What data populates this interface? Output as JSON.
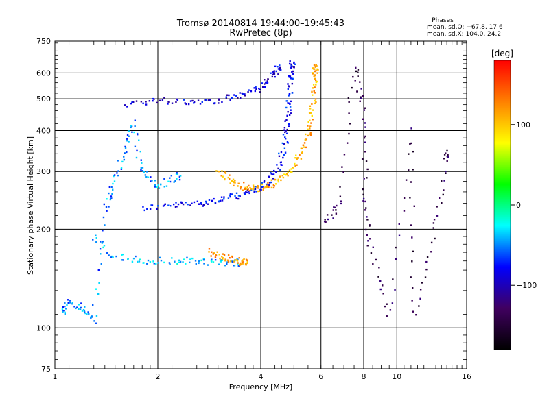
{
  "chart_data": {
    "type": "scatter",
    "title": "Tromsø 20140814 19:44:00–19:45:43",
    "subtitle": "RwPretec (8p)",
    "xlabel": "Frequency [MHz]",
    "ylabel": "Stationary phase Virtual Height [km]",
    "x_scale": "log",
    "y_scale": "log",
    "xlim": [
      1,
      16
    ],
    "ylim": [
      75,
      750
    ],
    "x_ticks": [
      1,
      2,
      4,
      6,
      8,
      10,
      16
    ],
    "y_ticks": [
      75,
      100,
      200,
      300,
      400,
      500,
      600,
      750
    ],
    "grid": true,
    "phase_box": {
      "heading": "Phases",
      "line1": "mean, sd,O: −67.8, 17.6",
      "line2": "mean, sd,X: 104.0, 24.2"
    },
    "colorbar": {
      "label": "[deg]",
      "range": [
        -180,
        180
      ],
      "ticks": [
        100,
        0,
        -100
      ],
      "tick_labels": [
        "100",
        "0",
        "−100"
      ],
      "colors": [
        "#ff0000",
        "#ff8000",
        "#ffff00",
        "#00ff00",
        "#00ffff",
        "#0000ff",
        "#400060",
        "#000000"
      ]
    },
    "series": [
      {
        "description": "F2 O-mode trace",
        "phase_deg": -80,
        "points": [
          [
            1.8,
            232
          ],
          [
            2.2,
            236
          ],
          [
            2.6,
            240
          ],
          [
            3.0,
            245
          ],
          [
            3.4,
            252
          ],
          [
            3.8,
            262
          ],
          [
            4.2,
            278
          ],
          [
            4.5,
            310
          ],
          [
            4.7,
            360
          ],
          [
            4.8,
            420
          ],
          [
            4.85,
            500
          ],
          [
            4.9,
            580
          ],
          [
            4.95,
            640
          ]
        ]
      },
      {
        "description": "F2 X-mode trace",
        "phase_deg": 110,
        "points": [
          [
            3.0,
            300
          ],
          [
            3.3,
            280
          ],
          [
            3.6,
            268
          ],
          [
            3.9,
            265
          ],
          [
            4.3,
            272
          ],
          [
            4.7,
            290
          ],
          [
            5.1,
            320
          ],
          [
            5.4,
            360
          ],
          [
            5.6,
            420
          ],
          [
            5.7,
            500
          ],
          [
            5.75,
            580
          ],
          [
            5.8,
            630
          ]
        ]
      },
      {
        "description": "Second hop O-mode",
        "phase_deg": -90,
        "points": [
          [
            1.6,
            480
          ],
          [
            2.0,
            495
          ],
          [
            2.5,
            490
          ],
          [
            3.0,
            495
          ],
          [
            3.5,
            510
          ],
          [
            4.0,
            540
          ],
          [
            4.3,
            580
          ],
          [
            4.5,
            620
          ]
        ]
      },
      {
        "description": "E/F1 region echoes",
        "phase_deg": -40,
        "points": [
          [
            1.3,
            190
          ],
          [
            1.5,
            165
          ],
          [
            1.8,
            160
          ],
          [
            2.2,
            160
          ],
          [
            2.6,
            160
          ],
          [
            3.0,
            158
          ],
          [
            3.4,
            158
          ]
        ]
      },
      {
        "description": "E/F1 X-mode echoes",
        "phase_deg": 120,
        "points": [
          [
            2.8,
            170
          ],
          [
            3.1,
            165
          ],
          [
            3.4,
            160
          ],
          [
            3.6,
            158
          ]
        ]
      },
      {
        "description": "Low-frequency diffuse echoes",
        "phase_deg": -50,
        "points": [
          [
            1.05,
            110
          ],
          [
            1.1,
            120
          ],
          [
            1.2,
            115
          ],
          [
            1.3,
            105
          ],
          [
            1.4,
            230
          ],
          [
            1.5,
            280
          ],
          [
            1.6,
            350
          ],
          [
            1.7,
            420
          ],
          [
            1.8,
            300
          ],
          [
            2.0,
            270
          ],
          [
            2.3,
            290
          ]
        ]
      },
      {
        "description": "High-frequency scattered echoes",
        "phase_deg": -140,
        "points": [
          [
            6.2,
            210
          ],
          [
            6.8,
            240
          ],
          [
            7.5,
            630
          ],
          [
            8.0,
            460
          ],
          [
            8.1,
            260
          ],
          [
            8.3,
            180
          ],
          [
            9.5,
            108
          ],
          [
            11.0,
            410
          ],
          [
            11.2,
            108
          ],
          [
            13.0,
            210
          ],
          [
            14.0,
            340
          ]
        ]
      }
    ]
  }
}
